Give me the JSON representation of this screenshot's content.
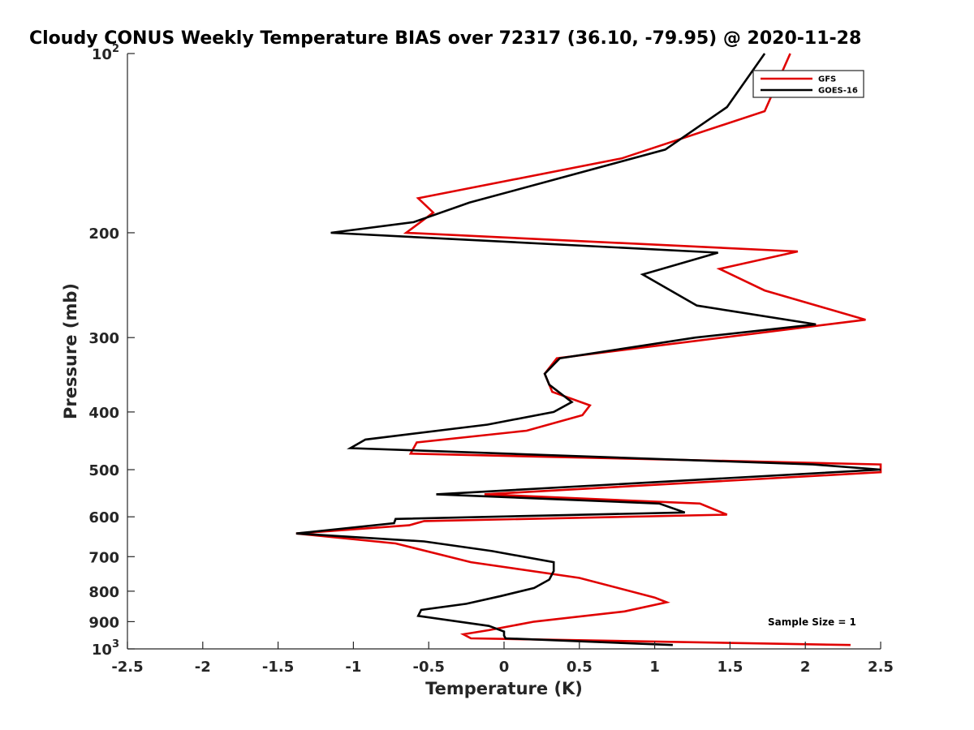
{
  "chart_data": {
    "type": "line",
    "title": "Cloudy CONUS Weekly Temperature BIAS over 72317 (36.10, -79.95) @ 2020-11-28",
    "xlabel": "Temperature (K)",
    "ylabel": "Pressure (mb)",
    "xlim": [
      -2.5,
      2.5
    ],
    "ylim": [
      1000,
      100
    ],
    "yscale": "log",
    "y_reversed": true,
    "grid": false,
    "legend_position": "top-right",
    "x_ticks": [
      {
        "value": -2.5,
        "label": "-2.5"
      },
      {
        "value": -2,
        "label": "-2"
      },
      {
        "value": -1.5,
        "label": "-1.5"
      },
      {
        "value": -1,
        "label": "-1"
      },
      {
        "value": -0.5,
        "label": "-0.5"
      },
      {
        "value": 0,
        "label": "0"
      },
      {
        "value": 0.5,
        "label": "0.5"
      },
      {
        "value": 1,
        "label": "1"
      },
      {
        "value": 1.5,
        "label": "1.5"
      },
      {
        "value": 2,
        "label": "2"
      },
      {
        "value": 2.5,
        "label": "2.5"
      }
    ],
    "y_ticks": [
      {
        "value": 100,
        "base": "10",
        "exp": "2"
      },
      {
        "value": 200,
        "label": "200"
      },
      {
        "value": 300,
        "label": "300"
      },
      {
        "value": 400,
        "label": "400"
      },
      {
        "value": 500,
        "label": "500"
      },
      {
        "value": 600,
        "label": "600"
      },
      {
        "value": 700,
        "label": "700"
      },
      {
        "value": 800,
        "label": "800"
      },
      {
        "value": 900,
        "label": "900"
      },
      {
        "value": 1000,
        "base": "10",
        "exp": "3"
      }
    ],
    "series": [
      {
        "name": "GFS",
        "color": "#e00000",
        "points": [
          [
            1.9,
            100
          ],
          [
            1.73,
            125
          ],
          [
            0.78,
            150
          ],
          [
            -0.57,
            175
          ],
          [
            -0.47,
            185
          ],
          [
            -0.65,
            200
          ],
          [
            1.95,
            215
          ],
          [
            1.43,
            230
          ],
          [
            1.73,
            250
          ],
          [
            2.4,
            280
          ],
          [
            0.35,
            325
          ],
          [
            0.27,
            345
          ],
          [
            0.32,
            370
          ],
          [
            0.57,
            390
          ],
          [
            0.52,
            405
          ],
          [
            0.15,
            430
          ],
          [
            -0.58,
            450
          ],
          [
            -0.62,
            470
          ],
          [
            2.5,
            490
          ],
          [
            2.5,
            505
          ],
          [
            -0.13,
            550
          ],
          [
            1.3,
            570
          ],
          [
            1.48,
            595
          ],
          [
            -0.53,
            610
          ],
          [
            -0.63,
            620
          ],
          [
            -1.38,
            640
          ],
          [
            -0.72,
            665
          ],
          [
            -0.22,
            715
          ],
          [
            0.5,
            760
          ],
          [
            1.0,
            820
          ],
          [
            1.08,
            835
          ],
          [
            0.8,
            865
          ],
          [
            0.2,
            900
          ],
          [
            -0.1,
            930
          ],
          [
            -0.27,
            945
          ],
          [
            -0.22,
            960
          ],
          [
            2.3,
            985
          ]
        ]
      },
      {
        "name": "GOES-16",
        "color": "#000000",
        "points": [
          [
            1.73,
            100
          ],
          [
            1.48,
            123
          ],
          [
            1.07,
            145
          ],
          [
            -0.23,
            178
          ],
          [
            -0.6,
            192
          ],
          [
            -1.15,
            200
          ],
          [
            1.42,
            216
          ],
          [
            0.92,
            235
          ],
          [
            1.28,
            265
          ],
          [
            2.07,
            285
          ],
          [
            1.27,
            300
          ],
          [
            0.37,
            325
          ],
          [
            0.27,
            345
          ],
          [
            0.3,
            360
          ],
          [
            0.45,
            385
          ],
          [
            0.33,
            400
          ],
          [
            -0.11,
            420
          ],
          [
            -0.92,
            445
          ],
          [
            -1.02,
            460
          ],
          [
            2.05,
            490
          ],
          [
            2.5,
            500
          ],
          [
            -0.45,
            550
          ],
          [
            1.03,
            570
          ],
          [
            1.2,
            590
          ],
          [
            -0.72,
            605
          ],
          [
            -0.73,
            615
          ],
          [
            -1.38,
            640
          ],
          [
            -0.53,
            660
          ],
          [
            -0.08,
            685
          ],
          [
            0.33,
            715
          ],
          [
            0.33,
            740
          ],
          [
            0.3,
            765
          ],
          [
            0.2,
            790
          ],
          [
            -0.02,
            815
          ],
          [
            -0.25,
            840
          ],
          [
            -0.55,
            860
          ],
          [
            -0.57,
            880
          ],
          [
            -0.1,
            915
          ],
          [
            0.0,
            935
          ],
          [
            0.0,
            950
          ],
          [
            0.01,
            960
          ],
          [
            1.12,
            985
          ]
        ]
      }
    ],
    "annotations": [
      {
        "text": "Sample Size = 1"
      }
    ]
  }
}
